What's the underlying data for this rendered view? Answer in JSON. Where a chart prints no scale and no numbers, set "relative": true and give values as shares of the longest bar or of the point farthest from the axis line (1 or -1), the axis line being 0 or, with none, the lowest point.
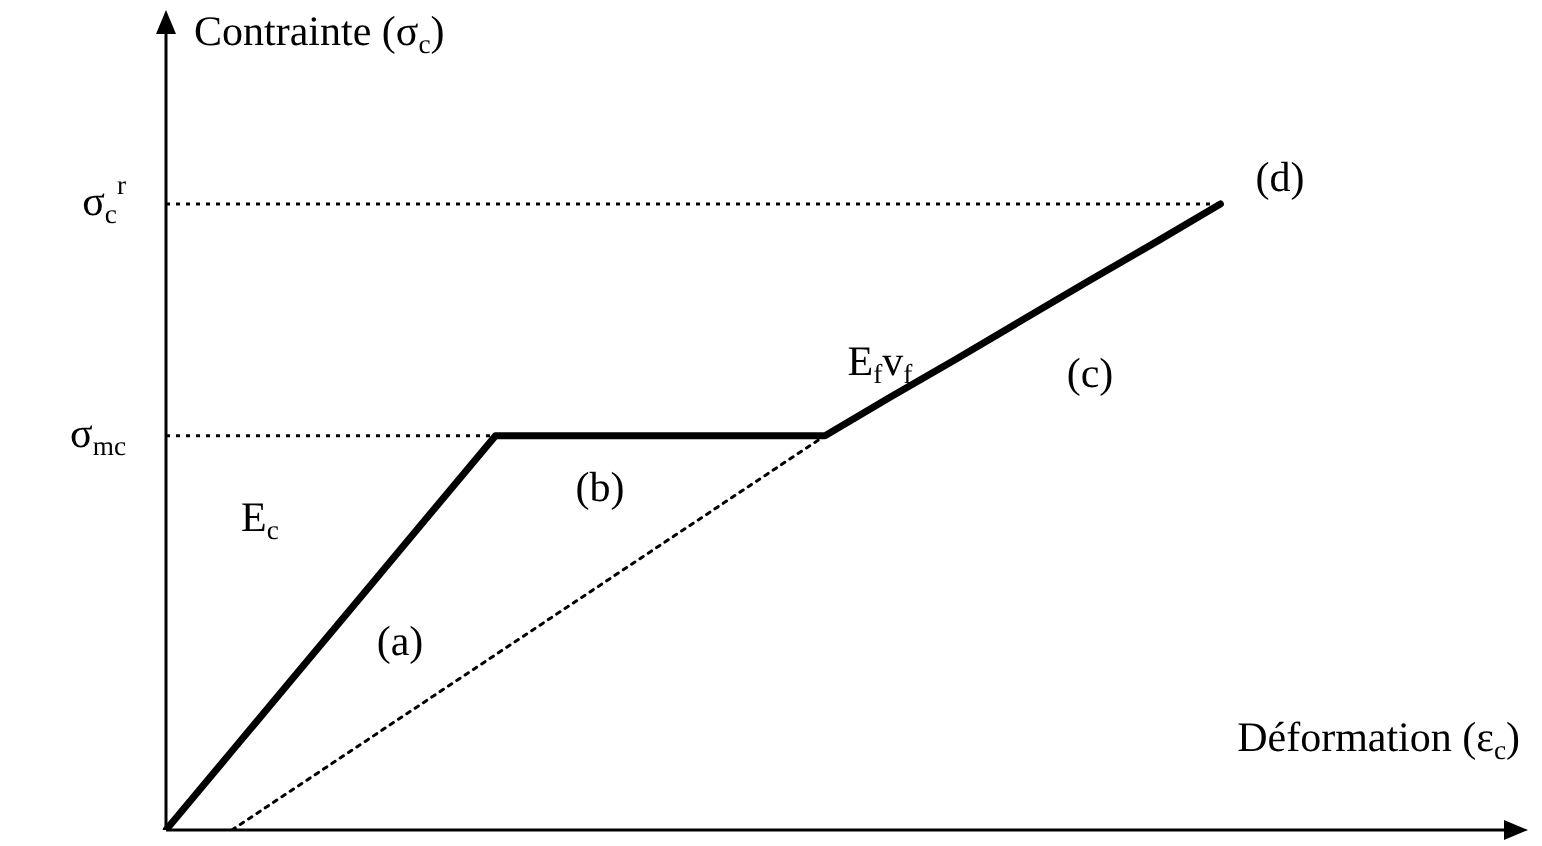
{
  "chart_data": {
    "type": "line",
    "relative": true,
    "xlabel": "Déformation (ε$_{c}$)",
    "ylabel": "Contrainte (σ$_{c}$)",
    "legend": false,
    "marker": "none",
    "categories": [
      null,
      null,
      null,
      null,
      null,
      null,
      null,
      null,
      null,
      null,
      null,
      null,
      null,
      null,
      null,
      null,
      null,
      null,
      null,
      null,
      null
    ],
    "series": [
      {
        "color": "#000000",
        "line_style": "solid",
        "values": [
          0,
          0.126,
          0.252,
          0.378,
          0.504,
          0.63,
          0.63,
          0.63,
          0.63,
          0.63,
          0.63,
          0.692,
          0.753,
          0.815,
          0.877,
          0.938,
          1,
          null,
          null,
          null,
          null
        ]
      },
      {
        "color": "#000000",
        "line_style": "dotted",
        "values": [
          null,
          0,
          0.07,
          0.14,
          0.21,
          0.28,
          0.35,
          0.42,
          0.49,
          0.56,
          0.63,
          null,
          null,
          null,
          null,
          null,
          null,
          null,
          null,
          null,
          null
        ]
      }
    ],
    "ref_lines": [
      {
        "axis": "y",
        "value": 1,
        "label": "σ$_{c}$$^{r}$",
        "line_style": "dotted"
      },
      {
        "axis": "y",
        "value": 0.63,
        "label": "σ$_{mc}$",
        "line_style": "dotted"
      }
    ],
    "annotations": [
      "E$_{c}$",
      "(a)",
      "(b)",
      "E$_{f}$v$_{f}$",
      "(c)",
      "(d)"
    ]
  }
}
